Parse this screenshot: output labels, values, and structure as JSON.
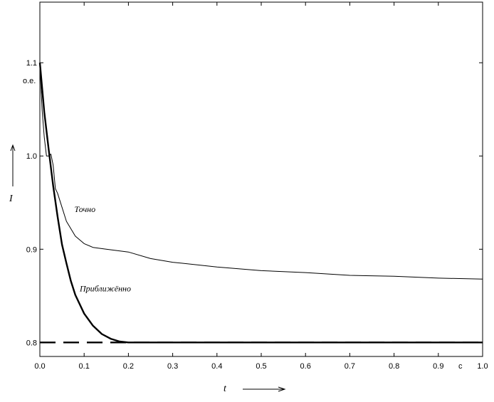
{
  "chart_data": {
    "type": "line",
    "title": "",
    "xlabel": "t",
    "ylabel": "I",
    "x_unit": "с",
    "y_unit": "о.е.",
    "xlim": [
      0.0,
      1.0
    ],
    "ylim": [
      0.785,
      1.165
    ],
    "x_ticks": [
      "0.0",
      "0.1",
      "0.2",
      "0.3",
      "0.4",
      "0.5",
      "0.6",
      "0.7",
      "0.8",
      "0.9",
      "1.0"
    ],
    "y_ticks": [
      "0.8",
      "0.9",
      "1.0",
      "1.1"
    ],
    "grid": false,
    "series": [
      {
        "name": "Точно",
        "style": "thin",
        "x": [
          0.0,
          0.005,
          0.01,
          0.015,
          0.02,
          0.025,
          0.03,
          0.035,
          0.04,
          0.05,
          0.06,
          0.08,
          0.1,
          0.12,
          0.15,
          0.2,
          0.25,
          0.3,
          0.4,
          0.5,
          0.6,
          0.7,
          0.8,
          0.9,
          1.0
        ],
        "y": [
          1.1,
          1.05,
          1.02,
          1.0,
          1.0,
          1.002,
          0.99,
          0.965,
          0.96,
          0.945,
          0.93,
          0.914,
          0.906,
          0.902,
          0.9,
          0.897,
          0.89,
          0.886,
          0.881,
          0.877,
          0.875,
          0.872,
          0.871,
          0.869,
          0.868
        ]
      },
      {
        "name": "Приближённо",
        "style": "thick",
        "x": [
          0.0,
          0.01,
          0.02,
          0.03,
          0.04,
          0.05,
          0.06,
          0.07,
          0.08,
          0.1,
          0.12,
          0.14,
          0.16,
          0.18,
          0.2,
          0.3,
          0.5,
          0.7,
          1.0
        ],
        "y": [
          1.1,
          1.047,
          1.007,
          0.968,
          0.935,
          0.905,
          0.885,
          0.866,
          0.851,
          0.831,
          0.818,
          0.809,
          0.804,
          0.801,
          0.8,
          0.8,
          0.8,
          0.8,
          0.8
        ]
      },
      {
        "name": "",
        "style": "dashed",
        "x": [
          0.0,
          1.0
        ],
        "y": [
          0.8,
          0.8
        ]
      }
    ],
    "annotations": [
      {
        "text": "Точно",
        "x": 0.078,
        "y": 0.94
      },
      {
        "text": "Приближённо",
        "x": 0.09,
        "y": 0.855
      }
    ]
  },
  "colors": {
    "line": "#000000",
    "background": "#ffffff"
  }
}
